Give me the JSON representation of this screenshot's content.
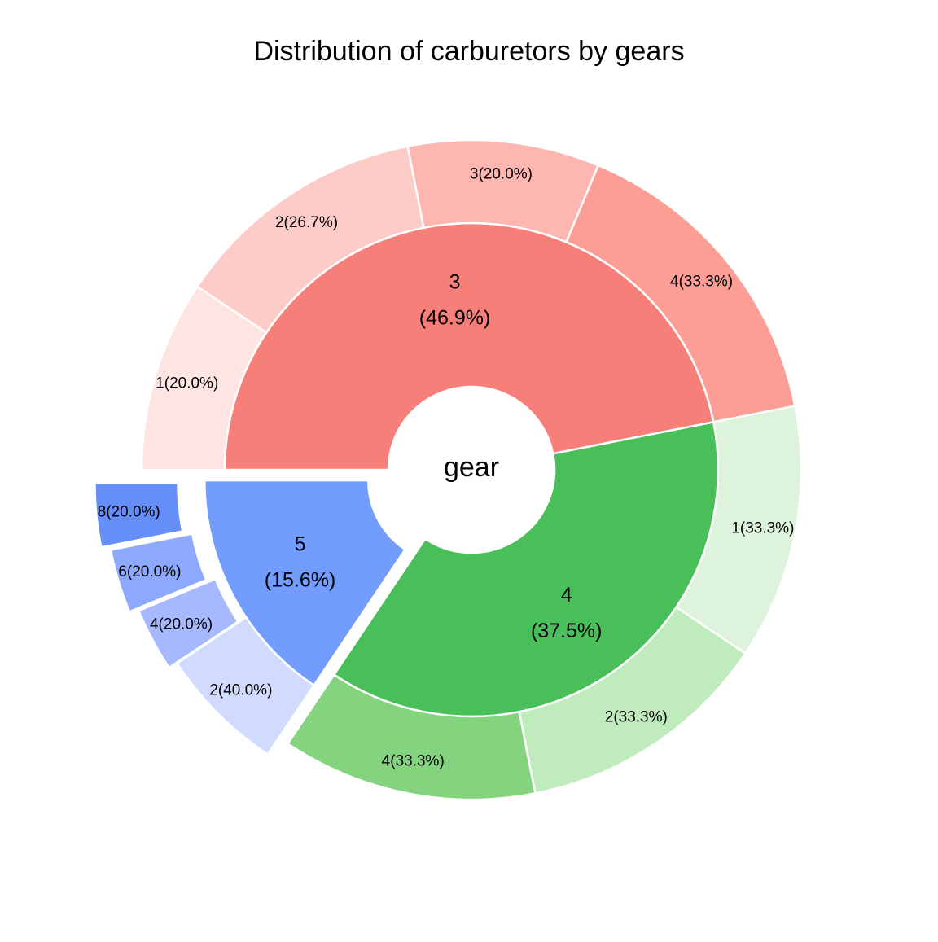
{
  "chart_data": {
    "type": "pie",
    "subtype": "nested-donut",
    "title": "Distribution of carburetors by gears",
    "center_label": "gear",
    "inner": [
      {
        "gear": "3",
        "label": "3",
        "pct_label": "(46.9%)",
        "percent": 46.9,
        "count": 15,
        "color": "#F67F7A",
        "exploded": false
      },
      {
        "gear": "4",
        "label": "4",
        "pct_label": "(37.5%)",
        "percent": 37.5,
        "count": 12,
        "color": "#48BF58",
        "exploded": false
      },
      {
        "gear": "5",
        "label": "5",
        "pct_label": "(15.6%)",
        "percent": 15.6,
        "count": 5,
        "color": "#729DFF",
        "exploded": true
      }
    ],
    "outer": [
      {
        "gear": "3",
        "slices": [
          {
            "label": "1(20.0%)",
            "carb": "1",
            "percent": 20.0,
            "color": "#FEE5E4"
          },
          {
            "label": "2(26.7%)",
            "carb": "2",
            "percent": 26.7,
            "color": "#FDCCC9"
          },
          {
            "label": "3(20.0%)",
            "carb": "3",
            "percent": 20.0,
            "color": "#FDB6B0"
          },
          {
            "label": "4(33.3%)",
            "carb": "4",
            "percent": 33.3,
            "color": "#FC9D96"
          }
        ]
      },
      {
        "gear": "4",
        "slices": [
          {
            "label": "1(33.3%)",
            "carb": "1",
            "percent": 33.3,
            "color": "#DEF3DB"
          },
          {
            "label": "2(33.3%)",
            "carb": "2",
            "percent": 33.3,
            "color": "#C0EBBC"
          },
          {
            "label": "4(33.3%)",
            "carb": "4",
            "percent": 33.3,
            "color": "#84D47F"
          }
        ]
      },
      {
        "gear": "5",
        "slices": [
          {
            "label": "2(40.0%)",
            "carb": "2",
            "percent": 40.0,
            "color": "#D1DBFF"
          },
          {
            "label": "4(20.0%)",
            "carb": "4",
            "percent": 20.0,
            "color": "#A6B9FF"
          },
          {
            "label": "6(20.0%)",
            "carb": "6",
            "percent": 20.0,
            "color": "#8CA8FF"
          },
          {
            "label": "8(20.0%)",
            "carb": "8",
            "percent": 20.0,
            "color": "#658EF9"
          }
        ]
      }
    ]
  }
}
